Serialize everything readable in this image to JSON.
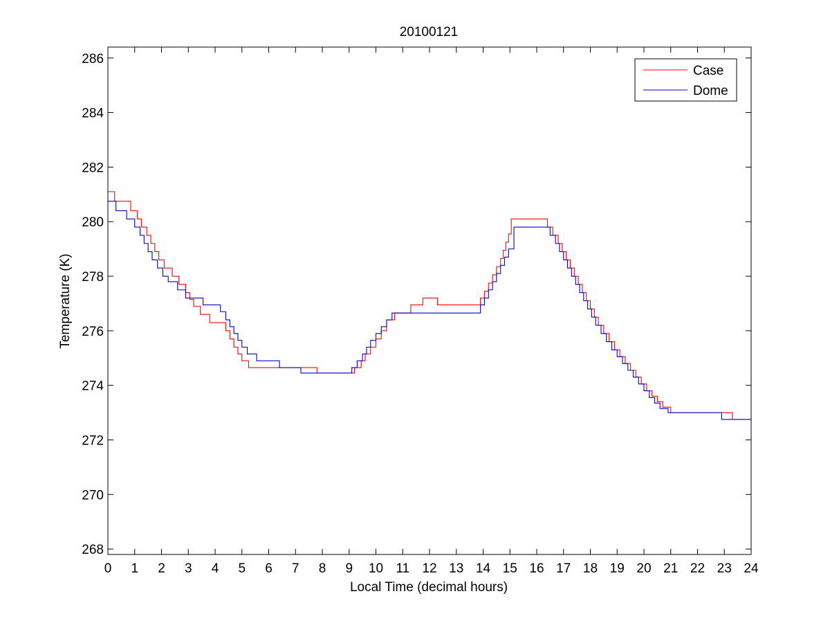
{
  "chart_data": {
    "type": "line",
    "title": "20100121",
    "xlabel": "Local Time (decimal hours)",
    "ylabel": "Temperature (K)",
    "xlim": [
      0,
      24
    ],
    "ylim": [
      267.8,
      286.4
    ],
    "xticks": [
      0,
      1,
      2,
      3,
      4,
      5,
      6,
      7,
      8,
      9,
      10,
      11,
      12,
      13,
      14,
      15,
      16,
      17,
      18,
      19,
      20,
      21,
      22,
      23,
      24
    ],
    "xtick_labels": [
      "0",
      "1",
      "2",
      "3",
      "4",
      "5",
      "6",
      "7",
      "8",
      "9",
      "10",
      "11",
      "12",
      "13",
      "14",
      "15",
      "16",
      "17",
      "18",
      "19",
      "20",
      "21",
      "22",
      "23",
      "24"
    ],
    "yticks": [
      268,
      270,
      272,
      274,
      276,
      278,
      280,
      282,
      284,
      286
    ],
    "ytick_labels": [
      "268",
      "270",
      "272",
      "274",
      "276",
      "278",
      "280",
      "282",
      "284",
      "286"
    ],
    "grid": false,
    "legend_position": "top-right",
    "series": [
      {
        "name": "Case",
        "color": "#ff0000",
        "step": true,
        "x": [
          0,
          0.25,
          0.85,
          1.1,
          1.25,
          1.45,
          1.6,
          1.75,
          1.9,
          2.1,
          2.4,
          2.65,
          2.9,
          3.05,
          3.2,
          3.45,
          3.8,
          4.4,
          4.55,
          4.7,
          4.85,
          5.0,
          5.25,
          5.55,
          6.2,
          6.55,
          6.9,
          7.8,
          9.2,
          9.45,
          9.6,
          9.8,
          10.0,
          10.2,
          10.4,
          10.7,
          11.3,
          11.75,
          12.3,
          13.9,
          14.05,
          14.2,
          14.35,
          14.5,
          14.65,
          14.75,
          14.85,
          14.95,
          15.05,
          16.4,
          16.6,
          16.8,
          16.95,
          17.1,
          17.25,
          17.4,
          17.55,
          17.7,
          17.85,
          18.0,
          18.15,
          18.3,
          18.5,
          18.7,
          18.9,
          19.1,
          19.3,
          19.5,
          19.7,
          19.9,
          20.1,
          20.3,
          20.5,
          20.7,
          21.0,
          21.3,
          21.6,
          21.85,
          22.1,
          23.3,
          24
        ],
        "y": [
          281.1,
          280.75,
          280.4,
          280.1,
          279.8,
          279.5,
          279.2,
          278.9,
          278.6,
          278.3,
          278.0,
          277.7,
          277.4,
          277.15,
          276.9,
          276.6,
          276.3,
          276.0,
          275.7,
          275.4,
          275.15,
          274.9,
          274.65,
          274.65,
          274.65,
          274.65,
          274.65,
          274.45,
          274.65,
          274.9,
          275.15,
          275.4,
          275.7,
          276.0,
          276.4,
          276.65,
          276.95,
          277.2,
          276.95,
          277.2,
          277.45,
          277.75,
          278.05,
          278.35,
          278.65,
          278.95,
          279.25,
          279.55,
          280.1,
          279.8,
          279.5,
          279.2,
          278.9,
          278.6,
          278.3,
          278.0,
          277.7,
          277.4,
          277.1,
          276.8,
          276.5,
          276.2,
          275.9,
          275.6,
          275.3,
          275.05,
          274.8,
          274.55,
          274.3,
          274.05,
          273.8,
          273.6,
          273.4,
          273.2,
          273.0,
          273.0,
          273.0,
          273.0,
          273.0,
          272.75,
          272.75
        ]
      },
      {
        "name": "Dome",
        "color": "#0000cc",
        "step": true,
        "x": [
          0,
          0.3,
          0.7,
          1.0,
          1.2,
          1.35,
          1.5,
          1.65,
          1.85,
          2.05,
          2.25,
          2.6,
          2.9,
          3.2,
          3.55,
          4.0,
          4.2,
          4.4,
          4.55,
          4.7,
          4.85,
          5.0,
          5.2,
          5.55,
          6.0,
          6.4,
          6.55,
          7.2,
          9.1,
          9.3,
          9.5,
          9.65,
          9.8,
          10.0,
          10.2,
          10.4,
          10.6,
          10.75,
          11.2,
          12.5,
          13.9,
          14.05,
          14.2,
          14.35,
          14.5,
          14.65,
          14.8,
          14.95,
          15.15,
          16.1,
          16.5,
          16.7,
          16.85,
          17.0,
          17.15,
          17.3,
          17.45,
          17.6,
          17.75,
          17.9,
          18.05,
          18.2,
          18.4,
          18.6,
          18.8,
          19.0,
          19.2,
          19.4,
          19.6,
          19.8,
          20.0,
          20.2,
          20.4,
          20.6,
          20.9,
          21.2,
          21.5,
          21.75,
          22.0,
          22.9,
          24
        ],
        "y": [
          280.75,
          280.4,
          280.1,
          279.8,
          279.5,
          279.2,
          278.9,
          278.6,
          278.3,
          278.0,
          277.8,
          277.5,
          277.2,
          277.2,
          276.95,
          276.95,
          276.7,
          276.4,
          276.15,
          275.9,
          275.65,
          275.4,
          275.15,
          274.9,
          274.9,
          274.65,
          274.65,
          274.45,
          274.65,
          274.9,
          275.15,
          275.4,
          275.65,
          275.9,
          276.15,
          276.4,
          276.65,
          276.65,
          276.65,
          276.65,
          276.95,
          277.2,
          277.5,
          277.8,
          278.1,
          278.4,
          278.7,
          279.0,
          279.8,
          279.8,
          279.5,
          279.2,
          278.9,
          278.6,
          278.3,
          278.0,
          277.7,
          277.4,
          277.1,
          276.8,
          276.5,
          276.2,
          275.9,
          275.6,
          275.3,
          275.05,
          274.8,
          274.55,
          274.3,
          274.05,
          273.8,
          273.55,
          273.35,
          273.15,
          273.0,
          273.0,
          273.0,
          273.0,
          273.0,
          272.75,
          272.75
        ]
      }
    ]
  }
}
